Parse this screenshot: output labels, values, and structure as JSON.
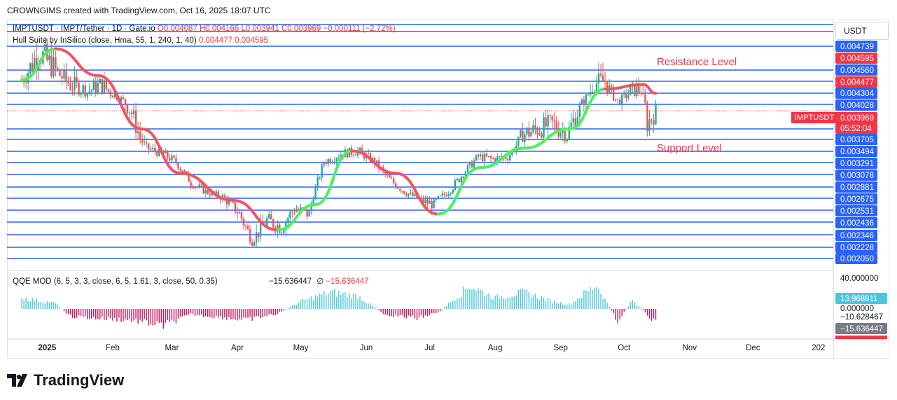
{
  "header": "CROWNGIMS created with TradingView.com, Oct 16, 2025 18:07 UTC",
  "legend": {
    "symbol": "IMPTUSDT · IMPT/Tether · 1D · Gate.io",
    "ohlc": "O0.004087  H0.004166  L0.003941  C0.003969  −0.000111 (−2.72%)",
    "hull_label": "Hull Suite by InSilico (close, Hma, 55, 1, 240, 1, 40)",
    "hull_values": "0.004477  0.004595",
    "qqe_label": "QQE MOD (6, 5, 3, 3, close, 6, 5, 1.61, 3, close, 50, 0.35)",
    "qqe_value1": "−15.636447",
    "qqe_sym": "∅",
    "qqe_value2": "−15.636447"
  },
  "currency_button": "USDT",
  "annotations": {
    "resistance": "Resistance Level",
    "support": "Support Level"
  },
  "brand": "TradingView",
  "symbol_tag": "IMPTUSDT",
  "colors": {
    "up": "#26a69a",
    "down": "#ef5350",
    "hull_up": "#4cf05a",
    "hull_down": "#f2545f",
    "level": "#2962ff",
    "qqe_up": "#4dc7dc",
    "qqe_down": "#c2185b",
    "badge_blue": "#2962ff",
    "badge_red": "#f23645"
  },
  "chart_data": {
    "type": "candlestick",
    "x_labels": [
      "2025",
      "Feb",
      "Mar",
      "Apr",
      "May",
      "Jun",
      "Jul",
      "Aug",
      "Sep",
      "Oct",
      "Nov",
      "Dec",
      "202"
    ],
    "price_axis_labels": [
      "0.004739",
      "0.004595",
      "0.004560",
      "0.004477",
      "0.004304",
      "0.004028",
      "0.003969",
      "05:52:04",
      "0.003705",
      "0.003494",
      "0.003291",
      "0.003078",
      "0.002881",
      "0.002675",
      "0.002531",
      "0.002436",
      "0.002346",
      "0.002228",
      "0.002050"
    ],
    "horizontal_levels": [
      0.004739,
      0.00456,
      0.004304,
      0.004028,
      0.003705,
      0.003494,
      0.003291,
      0.003078,
      0.002881,
      0.002675,
      0.002531,
      0.002436,
      0.002346,
      0.002228,
      0.00205
    ],
    "last_price": 0.003969,
    "hull_values": [
      0.004477,
      0.004595
    ],
    "close_path": [
      [
        "2024-12-20",
        0.00445
      ],
      [
        "2024-12-28",
        0.0047
      ],
      [
        "2025-01-05",
        0.00455
      ],
      [
        "2025-01-12",
        0.0044
      ],
      [
        "2025-01-20",
        0.00432
      ],
      [
        "2025-01-27",
        0.0044
      ],
      [
        "2025-02-04",
        0.0042
      ],
      [
        "2025-02-10",
        0.00395
      ],
      [
        "2025-02-17",
        0.00355
      ],
      [
        "2025-02-25",
        0.00345
      ],
      [
        "2025-03-03",
        0.0033
      ],
      [
        "2025-03-10",
        0.00295
      ],
      [
        "2025-03-17",
        0.0028
      ],
      [
        "2025-03-25",
        0.0027
      ],
      [
        "2025-04-02",
        0.0025
      ],
      [
        "2025-04-08",
        0.0023
      ],
      [
        "2025-04-15",
        0.00245
      ],
      [
        "2025-04-22",
        0.0024
      ],
      [
        "2025-04-28",
        0.00255
      ],
      [
        "2025-05-05",
        0.0025
      ],
      [
        "2025-05-12",
        0.0033
      ],
      [
        "2025-05-20",
        0.00345
      ],
      [
        "2025-05-28",
        0.0035
      ],
      [
        "2025-06-05",
        0.0033
      ],
      [
        "2025-06-12",
        0.003
      ],
      [
        "2025-06-19",
        0.0028
      ],
      [
        "2025-06-26",
        0.00265
      ],
      [
        "2025-07-03",
        0.0026
      ],
      [
        "2025-07-10",
        0.0028
      ],
      [
        "2025-07-17",
        0.0031
      ],
      [
        "2025-07-24",
        0.0034
      ],
      [
        "2025-07-31",
        0.00335
      ],
      [
        "2025-08-07",
        0.0034
      ],
      [
        "2025-08-14",
        0.00375
      ],
      [
        "2025-08-21",
        0.0038
      ],
      [
        "2025-08-28",
        0.00385
      ],
      [
        "2025-09-04",
        0.00375
      ],
      [
        "2025-09-10",
        0.004
      ],
      [
        "2025-09-16",
        0.0044
      ],
      [
        "2025-09-22",
        0.00445
      ],
      [
        "2025-09-28",
        0.0041
      ],
      [
        "2025-10-04",
        0.0043
      ],
      [
        "2025-10-09",
        0.00435
      ],
      [
        "2025-10-12",
        0.00385
      ],
      [
        "2025-10-16",
        0.003969
      ]
    ],
    "hull_path": [
      [
        "2024-12-20",
        0.00445,
        "up"
      ],
      [
        "2025-01-05",
        0.00472,
        "down"
      ],
      [
        "2025-01-25",
        0.0045,
        "down"
      ],
      [
        "2025-02-15",
        0.0038,
        "down"
      ],
      [
        "2025-03-05",
        0.0031,
        "down"
      ],
      [
        "2025-03-30",
        0.00265,
        "down"
      ],
      [
        "2025-04-20",
        0.00238,
        "up"
      ],
      [
        "2025-05-08",
        0.0026,
        "up"
      ],
      [
        "2025-05-25",
        0.0035,
        "down"
      ],
      [
        "2025-06-15",
        0.0031,
        "down"
      ],
      [
        "2025-07-05",
        0.0025,
        "up"
      ],
      [
        "2025-07-25",
        0.0032,
        "up"
      ],
      [
        "2025-08-15",
        0.00355,
        "up"
      ],
      [
        "2025-09-05",
        0.0038,
        "up"
      ],
      [
        "2025-09-22",
        0.00435,
        "down"
      ],
      [
        "2025-10-10",
        0.0044,
        "down"
      ],
      [
        "2025-10-16",
        0.0043,
        "down"
      ]
    ],
    "indicator": {
      "name": "QQE MOD",
      "axis_labels": [
        "40.000000",
        "13.968811",
        "0.000000",
        "−10.628467",
        "−15.636447"
      ],
      "value": -15.636447,
      "histogram": [
        [
          "2024-12-20",
          12
        ],
        [
          "2025-01-05",
          6
        ],
        [
          "2025-01-12",
          -8
        ],
        [
          "2025-01-25",
          -10
        ],
        [
          "2025-02-10",
          -12
        ],
        [
          "2025-02-25",
          -18
        ],
        [
          "2025-03-10",
          -6
        ],
        [
          "2025-03-25",
          -9
        ],
        [
          "2025-04-05",
          -12
        ],
        [
          "2025-04-20",
          -5
        ],
        [
          "2025-05-01",
          8
        ],
        [
          "2025-05-15",
          18
        ],
        [
          "2025-05-28",
          14
        ],
        [
          "2025-06-10",
          -6
        ],
        [
          "2025-06-25",
          -10
        ],
        [
          "2025-07-05",
          -4
        ],
        [
          "2025-07-20",
          25
        ],
        [
          "2025-08-01",
          12
        ],
        [
          "2025-08-15",
          18
        ],
        [
          "2025-08-28",
          8
        ],
        [
          "2025-09-05",
          5
        ],
        [
          "2025-09-18",
          26
        ],
        [
          "2025-09-28",
          -14
        ],
        [
          "2025-10-05",
          10
        ],
        [
          "2025-10-16",
          -15.6
        ]
      ]
    }
  }
}
